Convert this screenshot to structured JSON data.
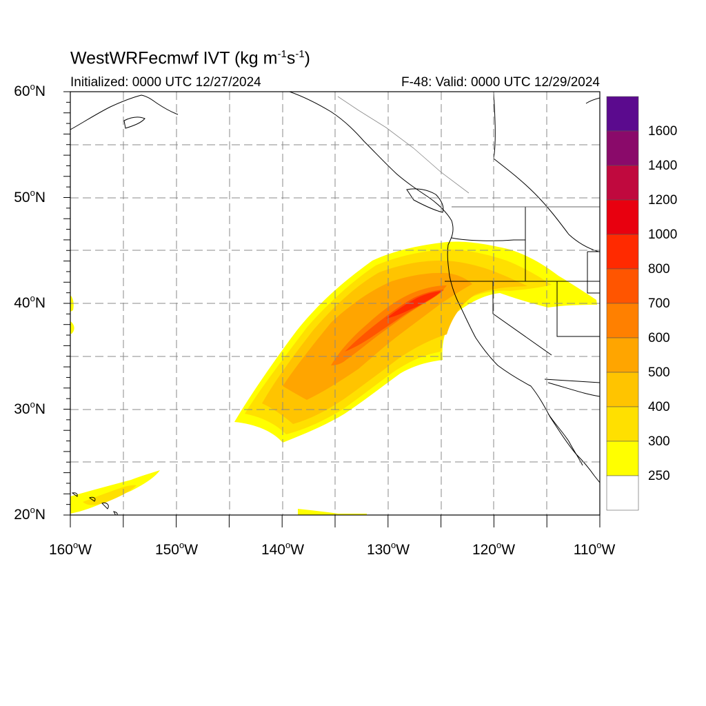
{
  "title_main": "WestWRFecmwf IVT (kg m",
  "title_exp1": "-1",
  "title_mid": "s",
  "title_exp2": "-1",
  "title_end": ")",
  "init_text": "Initialized: 0000 UTC 12/27/2024",
  "valid_text": "F-48: Valid: 0000 UTC 12/29/2024",
  "lat_labels": [
    "60",
    "50",
    "40",
    "30",
    "20"
  ],
  "lat_suffix": "N",
  "lon_labels": [
    "160",
    "150",
    "140",
    "130",
    "120",
    "110"
  ],
  "lon_suffix": "W",
  "deg_symbol": "o",
  "colorbar": {
    "labels": [
      "1600",
      "1400",
      "1200",
      "1000",
      "800",
      "700",
      "600",
      "500",
      "400",
      "300",
      "250"
    ],
    "colors": [
      "#5b0a8e",
      "#8a0a6a",
      "#c0093e",
      "#e8000f",
      "#ff2a00",
      "#ff5500",
      "#ff8000",
      "#ffa500",
      "#ffc400",
      "#ffe000",
      "#ffff00",
      "#ffffff"
    ]
  }
}
